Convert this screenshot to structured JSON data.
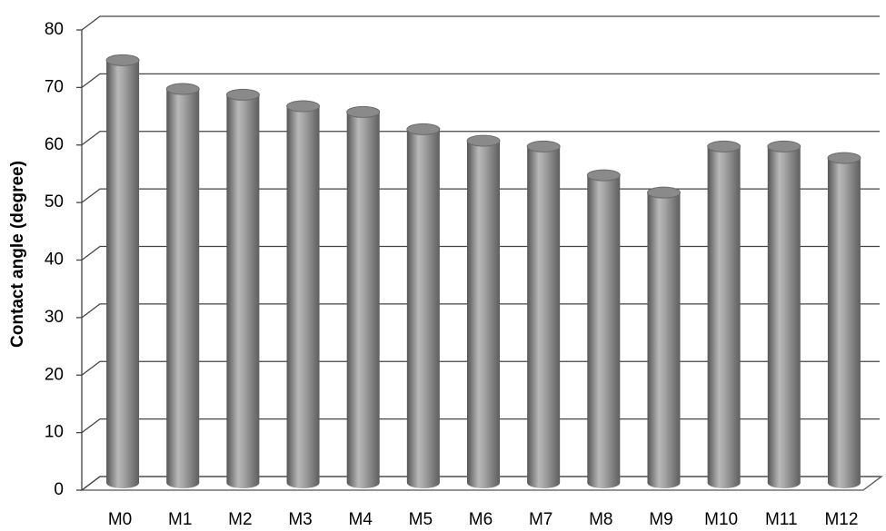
{
  "chart_data": {
    "type": "bar",
    "y_label": "Contact angle (degree)",
    "categories": [
      "M0",
      "M1",
      "M2",
      "M3",
      "M4",
      "M5",
      "M6",
      "M7",
      "M8",
      "M9",
      "M10",
      "M11",
      "M12"
    ],
    "values": [
      76,
      71,
      70,
      68,
      67,
      64,
      62,
      61,
      56,
      53,
      61,
      61,
      59
    ],
    "ylim": [
      0,
      80
    ],
    "yticks": [
      0,
      10,
      20,
      30,
      40,
      50,
      60,
      70,
      80
    ],
    "grid": true
  }
}
